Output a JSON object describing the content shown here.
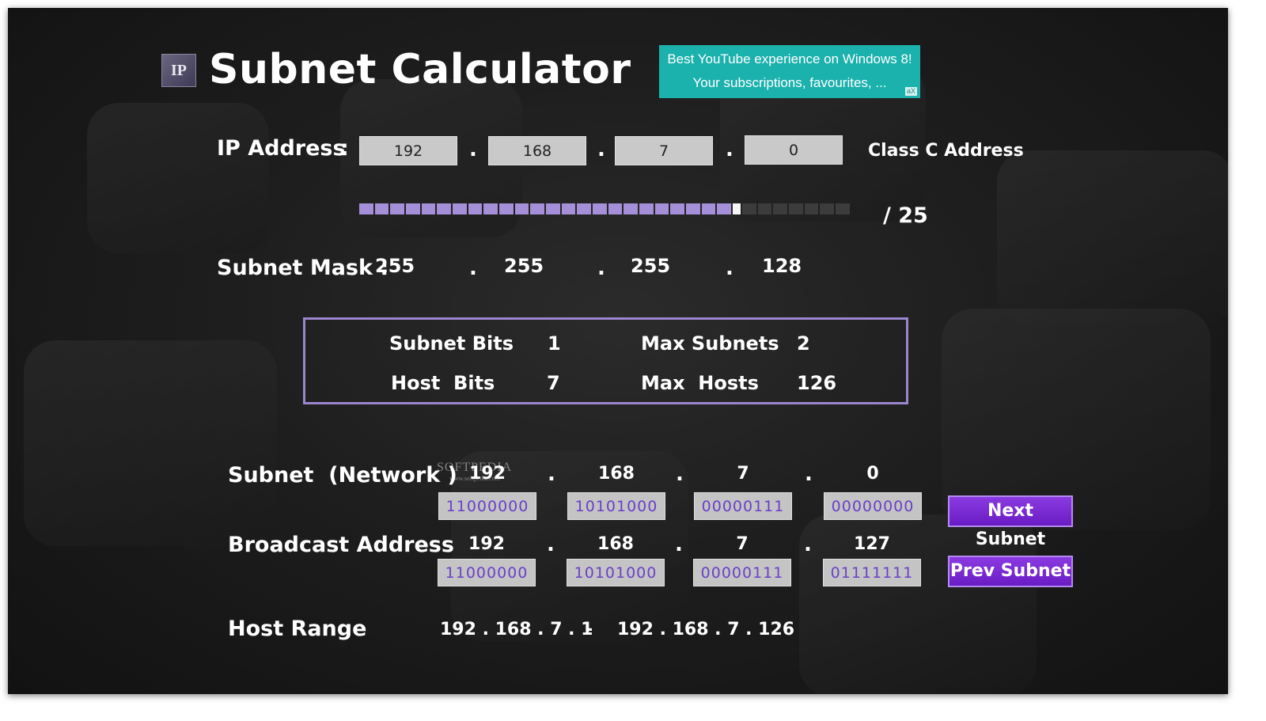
{
  "app": {
    "logo_text": "IP",
    "title": "Subnet Calculator"
  },
  "ad": {
    "line1": "Best YouTube experience on Windows 8!",
    "line2": "Your subscriptions, favourites, ...",
    "badge": "aX"
  },
  "ip_address": {
    "label": "IP Address",
    "colon": ":",
    "octets": [
      "192",
      "168",
      "7",
      "0"
    ],
    "separator": ".",
    "class_text": "Class C Address"
  },
  "prefix": {
    "value_text": "/ 25",
    "bits": 25,
    "total_bits": 32
  },
  "subnet_mask": {
    "label": "Subnet Mask :",
    "octets": [
      "255",
      "255",
      "255",
      "128"
    ]
  },
  "info": {
    "subnet_bits_label": "Subnet Bits",
    "subnet_bits_value": "1",
    "max_subnets_label": "Max Subnets",
    "max_subnets_value": "2",
    "host_bits_label": "Host  Bits",
    "host_bits_value": "7",
    "max_hosts_label": "Max  Hosts",
    "max_hosts_value": "126"
  },
  "network": {
    "label": "Subnet  (Network )",
    "octets": [
      "192",
      "168",
      "7",
      "0"
    ],
    "binary": [
      "11000000",
      "10101000",
      "00000111",
      "00000000"
    ]
  },
  "broadcast": {
    "label": "Broadcast Address",
    "octets": [
      "192",
      "168",
      "7",
      "127"
    ],
    "binary": [
      "11000000",
      "10101000",
      "00000111",
      "01111111"
    ]
  },
  "buttons": {
    "next": "Next Subnet",
    "prev": "Prev Subnet"
  },
  "host_range": {
    "label": "Host Range",
    "start": "192 . 168 . 7 . 1",
    "dash": "-",
    "end": "192 . 168 . 7 . 126"
  },
  "watermark": {
    "text": "SOFTPEDIA",
    "url": "www.softpedia.com"
  },
  "colors": {
    "accent": "#9b85cf",
    "button": "#7a2ad8",
    "ad": "#1bb1ad",
    "binary_text": "#6a40c8"
  }
}
